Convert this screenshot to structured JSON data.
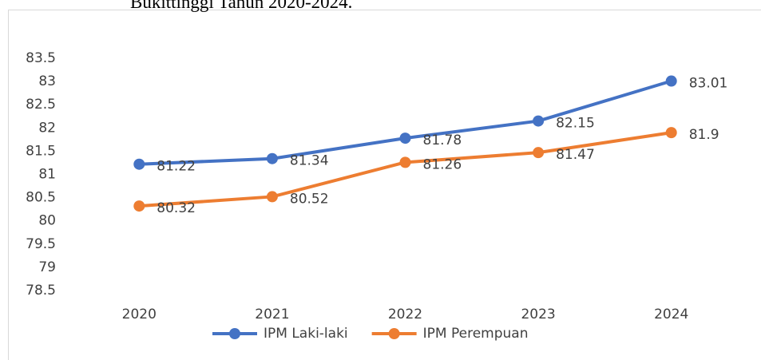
{
  "chart_data": {
    "type": "line",
    "title": "Bukittinggi Tahun 2020-2024.",
    "categories": [
      "2020",
      "2021",
      "2022",
      "2023",
      "2024"
    ],
    "series": [
      {
        "name": "IPM Laki-laki",
        "color": "#4472c4",
        "values": [
          81.22,
          81.34,
          81.78,
          82.15,
          83.01
        ]
      },
      {
        "name": "IPM Perempuan",
        "color": "#ed7d31",
        "values": [
          80.32,
          80.52,
          81.26,
          81.47,
          81.9
        ]
      }
    ],
    "ylim": [
      78.5,
      83.5
    ],
    "yticks": [
      78.5,
      79,
      79.5,
      80,
      80.5,
      81,
      81.5,
      82,
      82.5,
      83,
      83.5
    ],
    "grid": false,
    "legend": "bottom"
  }
}
